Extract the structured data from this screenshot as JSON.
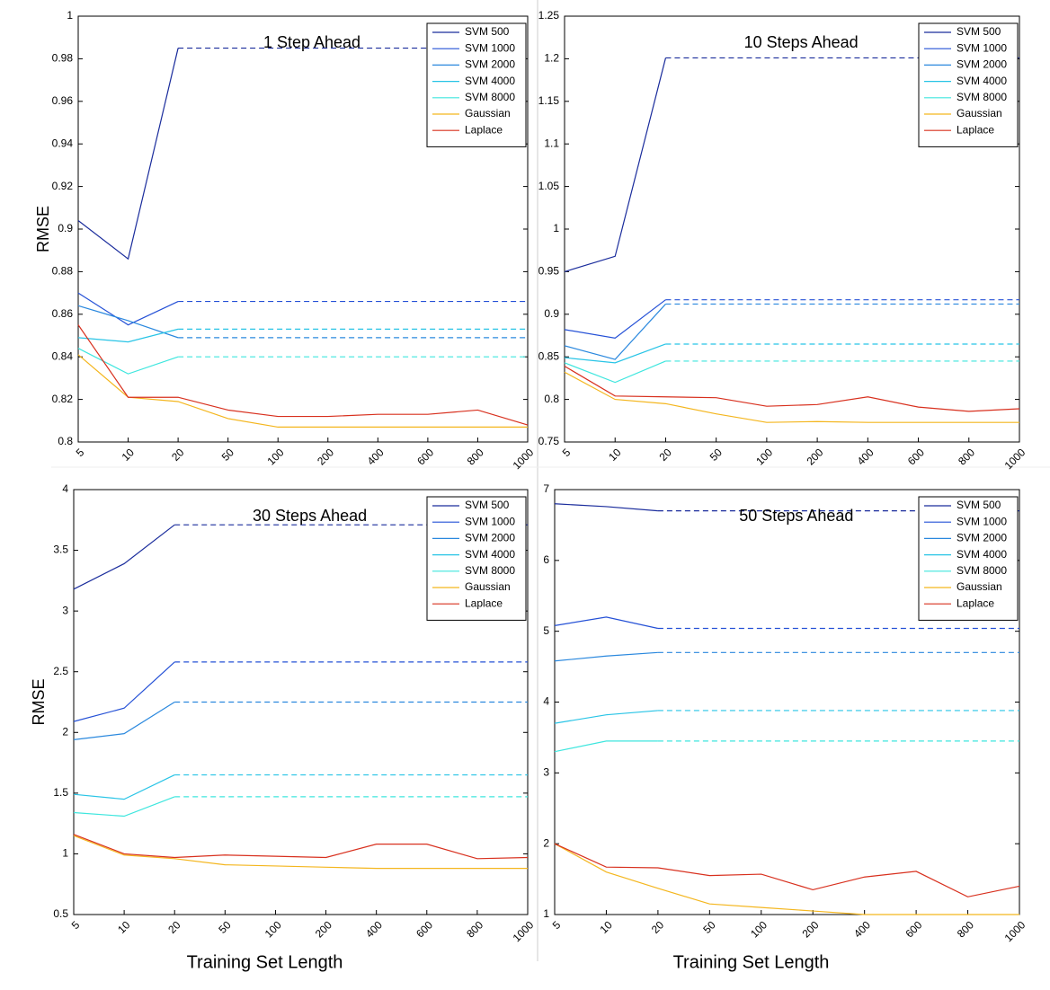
{
  "chart_data": [
    {
      "type": "line",
      "title": "1 Step Ahead",
      "y_label": "RMSE",
      "categories": [
        "5",
        "10",
        "20",
        "50",
        "100",
        "200",
        "400",
        "600",
        "800",
        "1000"
      ],
      "dashed_from": "20",
      "ylim": [
        0.8,
        1
      ],
      "yticks": [
        0.8,
        0.82,
        0.84,
        0.86,
        0.88,
        0.9,
        0.92,
        0.94,
        0.96,
        0.98,
        1
      ],
      "legend": "upper right",
      "series": [
        {
          "name": "SVM 500",
          "color": "#1a2c9c",
          "values": [
            0.904,
            0.886,
            0.985,
            0.985,
            0.985,
            0.985,
            0.985,
            0.985,
            0.985,
            0.985
          ]
        },
        {
          "name": "SVM 1000",
          "color": "#2450d6",
          "values": [
            0.87,
            0.855,
            0.866,
            0.866,
            0.866,
            0.866,
            0.866,
            0.866,
            0.866,
            0.866
          ]
        },
        {
          "name": "SVM 2000",
          "color": "#2a88de",
          "values": [
            0.864,
            0.857,
            0.849,
            0.849,
            0.849,
            0.849,
            0.849,
            0.849,
            0.849,
            0.849
          ]
        },
        {
          "name": "SVM 4000",
          "color": "#28c4e6",
          "values": [
            0.849,
            0.847,
            0.853,
            0.853,
            0.853,
            0.853,
            0.853,
            0.853,
            0.853,
            0.853
          ]
        },
        {
          "name": "SVM 8000",
          "color": "#3ee6de",
          "values": [
            0.844,
            0.832,
            0.84,
            0.84,
            0.84,
            0.84,
            0.84,
            0.84,
            0.84,
            0.84
          ]
        },
        {
          "name": "Gaussian",
          "color": "#f4b61e",
          "values": [
            0.841,
            0.821,
            0.819,
            0.811,
            0.807,
            0.807,
            0.807,
            0.807,
            0.807,
            0.807
          ]
        },
        {
          "name": "Laplace",
          "color": "#d8301e",
          "values": [
            0.855,
            0.821,
            0.821,
            0.815,
            0.812,
            0.812,
            0.813,
            0.813,
            0.815,
            0.808
          ]
        }
      ]
    },
    {
      "type": "line",
      "title": "10 Steps Ahead",
      "categories": [
        "5",
        "10",
        "20",
        "50",
        "100",
        "200",
        "400",
        "600",
        "800",
        "1000"
      ],
      "dashed_from": "20",
      "ylim": [
        0.75,
        1.25
      ],
      "yticks": [
        0.75,
        0.8,
        0.85,
        0.9,
        0.95,
        1,
        1.05,
        1.1,
        1.15,
        1.2,
        1.25
      ],
      "legend": "upper right",
      "series": [
        {
          "name": "SVM 500",
          "color": "#1a2c9c",
          "values": [
            0.95,
            0.968,
            1.201,
            1.201,
            1.201,
            1.201,
            1.201,
            1.201,
            1.201,
            1.201
          ]
        },
        {
          "name": "SVM 1000",
          "color": "#2450d6",
          "values": [
            0.882,
            0.872,
            0.917,
            0.917,
            0.917,
            0.917,
            0.917,
            0.917,
            0.917,
            0.917
          ]
        },
        {
          "name": "SVM 2000",
          "color": "#2a88de",
          "values": [
            0.863,
            0.847,
            0.912,
            0.912,
            0.912,
            0.912,
            0.912,
            0.912,
            0.912,
            0.912
          ]
        },
        {
          "name": "SVM 4000",
          "color": "#28c4e6",
          "values": [
            0.849,
            0.843,
            0.865,
            0.865,
            0.865,
            0.865,
            0.865,
            0.865,
            0.865,
            0.865
          ]
        },
        {
          "name": "SVM 8000",
          "color": "#3ee6de",
          "values": [
            0.843,
            0.82,
            0.845,
            0.845,
            0.845,
            0.845,
            0.845,
            0.845,
            0.845,
            0.845
          ]
        },
        {
          "name": "Gaussian",
          "color": "#f4b61e",
          "values": [
            0.832,
            0.8,
            0.795,
            0.783,
            0.773,
            0.774,
            0.773,
            0.773,
            0.773,
            0.773
          ]
        },
        {
          "name": "Laplace",
          "color": "#d8301e",
          "values": [
            0.839,
            0.804,
            0.803,
            0.802,
            0.792,
            0.794,
            0.803,
            0.791,
            0.786,
            0.789
          ]
        }
      ]
    },
    {
      "type": "line",
      "title": "30 Steps Ahead",
      "y_label": "RMSE",
      "x_label": "Training Set Length",
      "categories": [
        "5",
        "10",
        "20",
        "50",
        "100",
        "200",
        "400",
        "600",
        "800",
        "1000"
      ],
      "dashed_from": "20",
      "ylim": [
        0.5,
        4
      ],
      "yticks": [
        0.5,
        1,
        1.5,
        2,
        2.5,
        3,
        3.5,
        4
      ],
      "legend": "upper right",
      "series": [
        {
          "name": "SVM 500",
          "color": "#1a2c9c",
          "values": [
            3.18,
            3.39,
            3.71,
            3.71,
            3.71,
            3.71,
            3.71,
            3.71,
            3.71,
            3.71
          ]
        },
        {
          "name": "SVM 1000",
          "color": "#2450d6",
          "values": [
            2.09,
            2.2,
            2.58,
            2.58,
            2.58,
            2.58,
            2.58,
            2.58,
            2.58,
            2.58
          ]
        },
        {
          "name": "SVM 2000",
          "color": "#2a88de",
          "values": [
            1.94,
            1.99,
            2.25,
            2.25,
            2.25,
            2.25,
            2.25,
            2.25,
            2.25,
            2.25
          ]
        },
        {
          "name": "SVM 4000",
          "color": "#28c4e6",
          "values": [
            1.49,
            1.45,
            1.65,
            1.65,
            1.65,
            1.65,
            1.65,
            1.65,
            1.65,
            1.65
          ]
        },
        {
          "name": "SVM 8000",
          "color": "#3ee6de",
          "values": [
            1.34,
            1.31,
            1.47,
            1.47,
            1.47,
            1.47,
            1.47,
            1.47,
            1.47,
            1.47
          ]
        },
        {
          "name": "Gaussian",
          "color": "#f4b61e",
          "values": [
            1.15,
            0.99,
            0.96,
            0.91,
            0.9,
            0.89,
            0.88,
            0.88,
            0.88,
            0.88
          ]
        },
        {
          "name": "Laplace",
          "color": "#d8301e",
          "values": [
            1.16,
            1.0,
            0.97,
            0.99,
            0.98,
            0.97,
            1.08,
            1.08,
            0.96,
            0.97
          ]
        }
      ]
    },
    {
      "type": "line",
      "title": "50 Steps Ahead",
      "x_label": "Training Set Length",
      "categories": [
        "5",
        "10",
        "20",
        "50",
        "100",
        "200",
        "400",
        "600",
        "800",
        "1000"
      ],
      "dashed_from": "20",
      "ylim": [
        1,
        7
      ],
      "yticks": [
        1,
        2,
        3,
        4,
        5,
        6,
        7
      ],
      "legend": "upper right",
      "series": [
        {
          "name": "SVM 500",
          "color": "#1a2c9c",
          "values": [
            6.8,
            6.76,
            6.7,
            6.7,
            6.7,
            6.7,
            6.7,
            6.7,
            6.7,
            6.7
          ]
        },
        {
          "name": "SVM 1000",
          "color": "#2450d6",
          "values": [
            5.08,
            5.2,
            5.04,
            5.04,
            5.04,
            5.04,
            5.04,
            5.04,
            5.04,
            5.04
          ]
        },
        {
          "name": "SVM 2000",
          "color": "#2a88de",
          "values": [
            4.58,
            4.65,
            4.7,
            4.7,
            4.7,
            4.7,
            4.7,
            4.7,
            4.7,
            4.7
          ]
        },
        {
          "name": "SVM 4000",
          "color": "#28c4e6",
          "values": [
            3.7,
            3.82,
            3.88,
            3.88,
            3.88,
            3.88,
            3.88,
            3.88,
            3.88,
            3.88
          ]
        },
        {
          "name": "SVM 8000",
          "color": "#3ee6de",
          "values": [
            3.3,
            3.45,
            3.45,
            3.45,
            3.45,
            3.45,
            3.45,
            3.45,
            3.45,
            3.45
          ]
        },
        {
          "name": "Gaussian",
          "color": "#f4b61e",
          "values": [
            2.0,
            1.6,
            1.37,
            1.15,
            1.1,
            1.05,
            1.0,
            1.0,
            1.0,
            1.0
          ]
        },
        {
          "name": "Laplace",
          "color": "#d8301e",
          "values": [
            2.0,
            1.67,
            1.66,
            1.55,
            1.57,
            1.35,
            1.53,
            1.61,
            1.25,
            1.4
          ]
        }
      ]
    }
  ]
}
